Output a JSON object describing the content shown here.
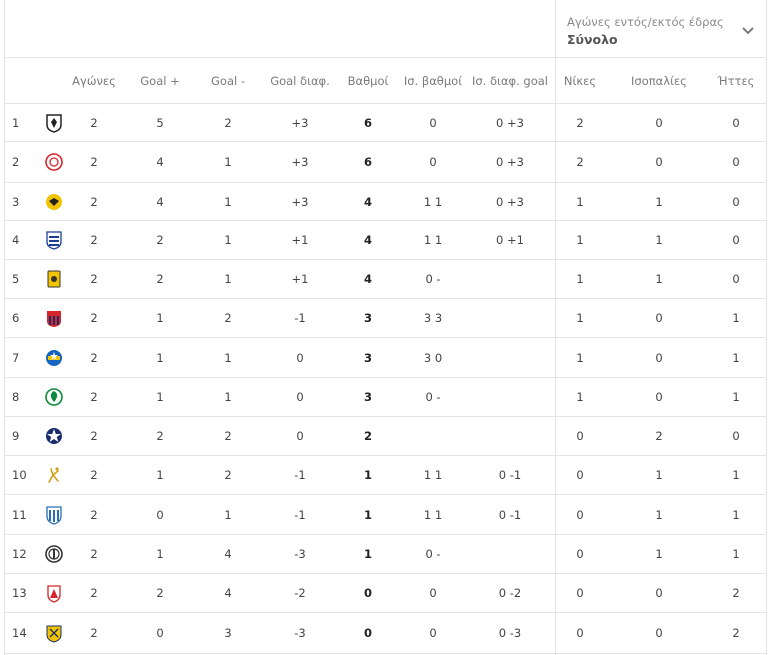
{
  "filter": {
    "label": "Αγώνες εντός/εκτός έδρας",
    "value": "Σύνολο"
  },
  "columns": {
    "games": "Αγώνες",
    "goals_for": "Goal +",
    "goals_against": "Goal -",
    "goal_diff": "Goal διαφ.",
    "points": "Βαθμοί",
    "tie_points": "Ισ. βαθμοί",
    "tie_goal_diff": "Ισ. διαφ. goal",
    "wins": "Νίκες",
    "draws": "Ισοπαλίες",
    "losses": "Ήττες"
  },
  "rows": [
    {
      "pos": "1",
      "crest": "paok-crest-icon",
      "games": "2",
      "gf": "5",
      "ga": "2",
      "gd": "+3",
      "pts": "6",
      "tp": "0",
      "tgd": "0 +3",
      "w": "2",
      "d": "0",
      "l": "0"
    },
    {
      "pos": "2",
      "crest": "olympiacos-crest-icon",
      "games": "2",
      "gf": "4",
      "ga": "1",
      "gd": "+3",
      "pts": "6",
      "tp": "0",
      "tgd": "0 +3",
      "w": "2",
      "d": "0",
      "l": "0"
    },
    {
      "pos": "3",
      "crest": "aek-crest-icon",
      "games": "2",
      "gf": "4",
      "ga": "1",
      "gd": "+3",
      "pts": "4",
      "tp": "1 1",
      "tgd": "0 +3",
      "w": "1",
      "d": "1",
      "l": "0"
    },
    {
      "pos": "4",
      "crest": "lamia-crest-icon",
      "games": "2",
      "gf": "2",
      "ga": "1",
      "gd": "+1",
      "pts": "4",
      "tp": "1 1",
      "tgd": "0 +1",
      "w": "1",
      "d": "1",
      "l": "0"
    },
    {
      "pos": "5",
      "crest": "aris-crest-icon",
      "games": "2",
      "gf": "2",
      "ga": "1",
      "gd": "+1",
      "pts": "4",
      "tp": "0 -",
      "tgd": "",
      "w": "1",
      "d": "1",
      "l": "0"
    },
    {
      "pos": "6",
      "crest": "volos-crest-icon",
      "games": "2",
      "gf": "1",
      "ga": "2",
      "gd": "-1",
      "pts": "3",
      "tp": "3 3",
      "tgd": "",
      "w": "1",
      "d": "0",
      "l": "1"
    },
    {
      "pos": "7",
      "crest": "asteras-crest-icon",
      "games": "2",
      "gf": "1",
      "ga": "1",
      "gd": "0",
      "pts": "3",
      "tp": "3 0",
      "tgd": "",
      "w": "1",
      "d": "0",
      "l": "1"
    },
    {
      "pos": "8",
      "crest": "panathinaikos-crest-icon",
      "games": "2",
      "gf": "1",
      "ga": "1",
      "gd": "0",
      "pts": "3",
      "tp": "0 -",
      "tgd": "",
      "w": "1",
      "d": "0",
      "l": "1"
    },
    {
      "pos": "9",
      "crest": "atromitos-crest-icon",
      "games": "2",
      "gf": "2",
      "ga": "2",
      "gd": "0",
      "pts": "2",
      "tp": "",
      "tgd": "",
      "w": "0",
      "d": "2",
      "l": "0"
    },
    {
      "pos": "10",
      "crest": "panetolikos-crest-icon",
      "games": "2",
      "gf": "1",
      "ga": "2",
      "gd": "-1",
      "pts": "1",
      "tp": "1 1",
      "tgd": "0 -1",
      "w": "0",
      "d": "1",
      "l": "1"
    },
    {
      "pos": "11",
      "crest": "pas-giannina-crest-icon",
      "games": "2",
      "gf": "0",
      "ga": "1",
      "gd": "-1",
      "pts": "1",
      "tp": "1 1",
      "tgd": "0 -1",
      "w": "0",
      "d": "1",
      "l": "1"
    },
    {
      "pos": "12",
      "crest": "ofi-crest-icon",
      "games": "2",
      "gf": "1",
      "ga": "4",
      "gd": "-3",
      "pts": "1",
      "tp": "0 -",
      "tgd": "",
      "w": "0",
      "d": "1",
      "l": "1"
    },
    {
      "pos": "13",
      "crest": "xanthi-crest-icon",
      "games": "2",
      "gf": "2",
      "ga": "4",
      "gd": "-2",
      "pts": "0",
      "tp": "0",
      "tgd": "0 -2",
      "w": "0",
      "d": "0",
      "l": "2"
    },
    {
      "pos": "14",
      "crest": "panionios-crest-icon",
      "games": "2",
      "gf": "0",
      "ga": "3",
      "gd": "-3",
      "pts": "0",
      "tp": "0",
      "tgd": "0 -3",
      "w": "0",
      "d": "0",
      "l": "2"
    }
  ],
  "crest_colors": {
    "paok": "#222222",
    "olympiacos": "#d6262b",
    "aek": "#f2c400",
    "lamia": "#1c3f94",
    "aris": "#f2c400",
    "volos": "#d6262b",
    "asteras": "#1565c0",
    "panathinaikos": "#0a8a3a",
    "atromitos": "#1a2d6b",
    "panetolikos": "#d4a017",
    "pas-giannina": "#2a6fb5",
    "ofi": "#333333",
    "xanthi": "#d6262b",
    "panionios": "#f2c400"
  }
}
